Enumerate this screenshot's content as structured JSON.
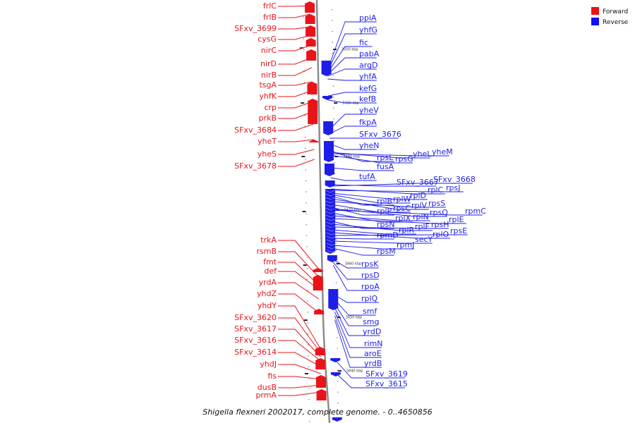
{
  "caption": "Shigella flexneri 2002017, complete genome. - 0..4650856",
  "legend": {
    "items": [
      {
        "label": "Forward",
        "color": "#ee1111"
      },
      {
        "label": "Reverse",
        "color": "#1111ee"
      }
    ]
  },
  "colors": {
    "forward": "#e8141a",
    "reverse": "#1e1ee8",
    "backbone": "#888888"
  },
  "forward_genes": [
    "frlC",
    "frlB",
    "SFxv_3699",
    "cysG",
    "nirC",
    "nirD",
    "nirB",
    "tsgA",
    "yhfK",
    "crp",
    "prkB",
    "SFxv_3684",
    "yheT",
    "yheS",
    "SFxv_3678",
    "trkA",
    "rsmB",
    "fmt",
    "def",
    "yrdA",
    "yhdZ",
    "yhdY",
    "SFxv_3620",
    "SFxv_3617",
    "SFxv_3616",
    "SFxv_3614",
    "yhdJ",
    "fis",
    "dusB",
    "prmA"
  ],
  "reverse_genes": [
    "ppiA",
    "yhfG",
    "fic",
    "pabA",
    "argD",
    "yhfA",
    "kefG",
    "kefB",
    "yheV",
    "fkpA",
    "SFxv_3676",
    "yheN",
    "rpsL",
    "yheL",
    "yheM",
    "rpsG",
    "fusA",
    "tufA",
    "SFxv_3667",
    "SFxv_3668",
    "rplC",
    "rpsJ",
    "rplD",
    "rplW",
    "rplB",
    "rplV",
    "rpsS",
    "rpsC",
    "rplP",
    "rpsQ",
    "rpmC",
    "rplX",
    "rplN",
    "rplE",
    "rpsN",
    "rplF",
    "rpsH",
    "rplR",
    "rplO",
    "rpsE",
    "rpmD",
    "secY",
    "rpmJ",
    "rpsM",
    "rpsK",
    "rpsD",
    "rpoA",
    "rplQ",
    "smf",
    "smg",
    "yrdD",
    "rimN",
    "aroE",
    "yrdB",
    "SFxv_3619",
    "SFxv_3615"
  ],
  "ticks": [
    "3500 kbp",
    "3490 kbp",
    "3480 kbp",
    "3470 kbp",
    "3460 kbp",
    "3450 kbp",
    "3440 kbp"
  ]
}
